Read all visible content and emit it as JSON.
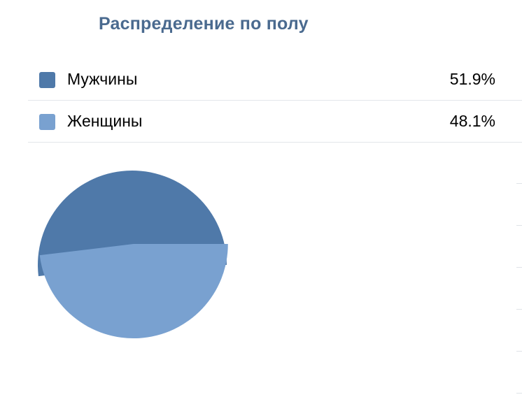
{
  "title": "Распределение по полу",
  "legend": [
    {
      "label": "Мужчины",
      "value": "51.9%",
      "color": "#4f79a9"
    },
    {
      "label": "Женщины",
      "value": "48.1%",
      "color": "#79a1d0"
    }
  ],
  "chart_data": {
    "type": "pie",
    "title": "Распределение по полу",
    "categories": [
      "Мужчины",
      "Женщины"
    ],
    "values": [
      51.9,
      48.1
    ],
    "colors": [
      "#4f79a9",
      "#79a1d0"
    ],
    "exploded_slice": "Женщины",
    "legend": "top"
  }
}
